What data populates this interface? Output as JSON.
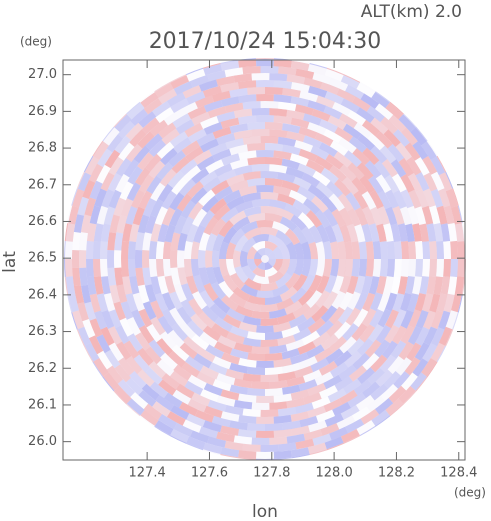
{
  "chart_data": {
    "type": "radar-ppi",
    "title": "2017/10/24 15:04:30",
    "subtitle": "ALT(km) 2.0",
    "x_label": "lon",
    "y_label": "lat",
    "x_unit": "(deg)",
    "y_unit": "(deg)",
    "xlim": [
      127.13,
      128.42
    ],
    "ylim": [
      25.95,
      27.04
    ],
    "xticks": [
      127.4,
      127.6,
      127.8,
      {
        "value": 128,
        "label": "128.0"
      },
      128.2,
      {
        "value": 128.4,
        "label": "128.4"
      }
    ],
    "yticks": [
      {
        "value": 26,
        "label": "26.0"
      },
      26.1,
      26.2,
      26.3,
      26.4,
      26.5,
      26.6,
      26.7,
      26.8,
      26.9,
      {
        "value": 27,
        "label": "27.0"
      }
    ]
  }
}
